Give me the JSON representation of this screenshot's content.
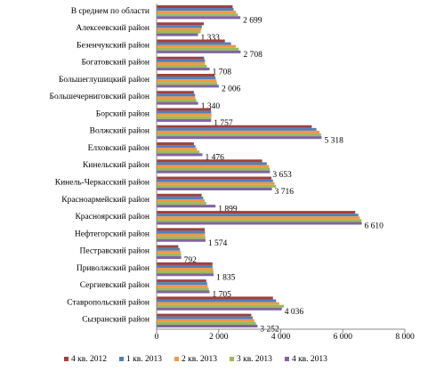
{
  "chart_data": {
    "type": "hbar",
    "categories": [
      "В среднем по области",
      "Алексеевский район",
      "Безенчукский район",
      "Богатовский район",
      "Большеглушицкий район",
      "Большечерниговский район",
      "Борский район",
      "Волжский район",
      "Елховский район",
      "Кинельский район",
      "Кинель-Черкасский район",
      "Красноармейский район",
      "Красноярский район",
      "Нефтегорский район",
      "Пестравский район",
      "Приволжский район",
      "Сергиевский район",
      "Ставропольский район",
      "Сызранский район"
    ],
    "series": [
      {
        "name": "4 кв. 2012",
        "color": "#a0413c",
        "values": [
          2450,
          1520,
          2200,
          1530,
          1870,
          1200,
          1750,
          5000,
          1200,
          3400,
          3700,
          1450,
          6400,
          1550,
          700,
          1800,
          1600,
          3750,
          3050
        ]
      },
      {
        "name": "1 кв. 2013",
        "color": "#4f81bd",
        "values": [
          2480,
          1460,
          2400,
          1560,
          1900,
          1240,
          1760,
          5150,
          1250,
          3550,
          3750,
          1500,
          6500,
          1560,
          750,
          1800,
          1630,
          3850,
          3100
        ]
      },
      {
        "name": "2 кв. 2013",
        "color": "#f79646",
        "values": [
          2560,
          1440,
          2550,
          1560,
          1930,
          1250,
          1770,
          5250,
          1300,
          3620,
          3800,
          1550,
          6550,
          1560,
          780,
          1820,
          1650,
          3950,
          3150
        ]
      },
      {
        "name": "3 кв. 2013",
        "color": "#9bbb59",
        "values": [
          2620,
          1420,
          2650,
          1620,
          1950,
          1280,
          1760,
          5300,
          1380,
          3650,
          3850,
          1600,
          6600,
          1570,
          790,
          1830,
          1680,
          4100,
          3200
        ]
      },
      {
        "name": "4 кв. 2013",
        "color": "#8064a2",
        "values": [
          2699,
          1333,
          2708,
          1708,
          2006,
          1340,
          1757,
          5318,
          1476,
          3653,
          3716,
          1899,
          6610,
          1574,
          792,
          1835,
          1705,
          4036,
          3252
        ],
        "value_labels": [
          "2 699",
          "1 333",
          "2 708",
          "1 708",
          "2 006",
          "1 340",
          "1 757",
          "5 318",
          "1 476",
          "3 653",
          "3 716",
          "1 899",
          "6 610",
          "1 574",
          "792",
          "1 835",
          "1 705",
          "4 036",
          "3 252"
        ]
      }
    ],
    "xlim": [
      0,
      8000
    ],
    "xticks": [
      0,
      {
        "value": 2000,
        "label": "2 000"
      },
      {
        "value": 4000,
        "label": "4 000"
      },
      {
        "value": 6000,
        "label": "6 000"
      },
      {
        "value": 8000,
        "label": "8 000"
      }
    ]
  }
}
